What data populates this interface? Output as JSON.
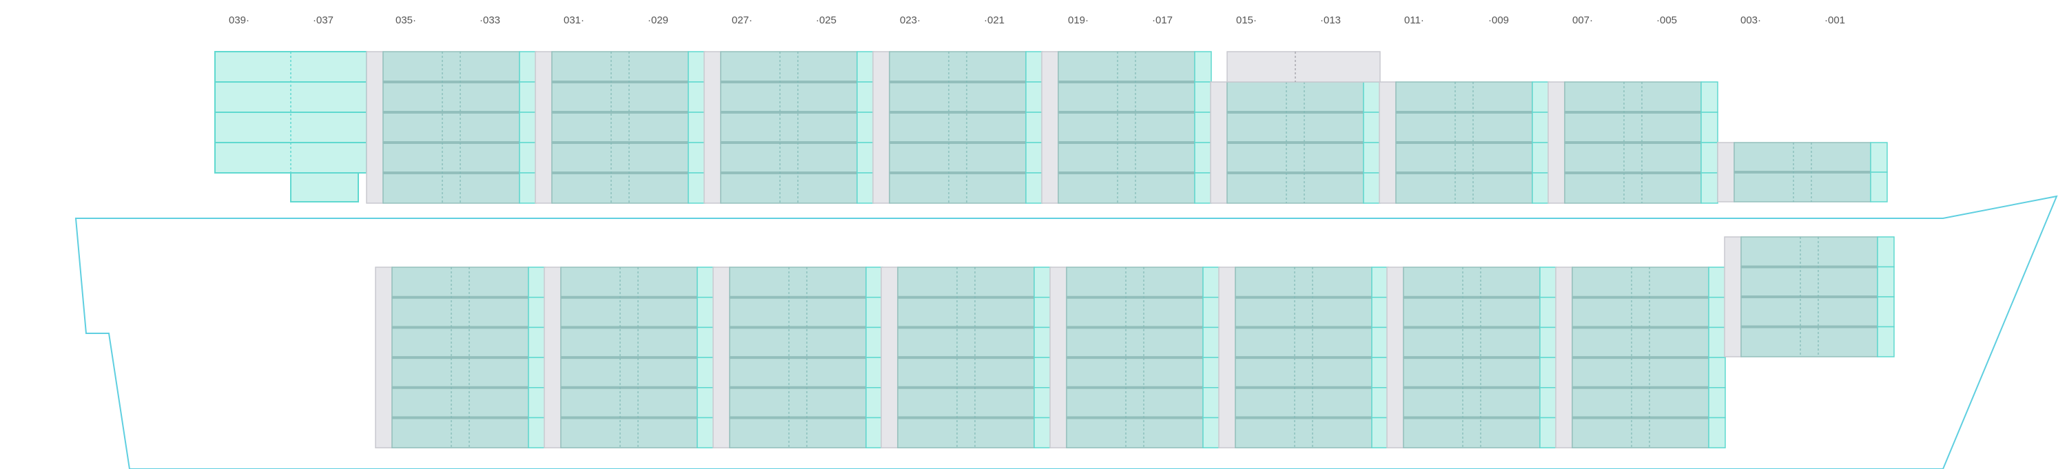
{
  "bays": [
    {
      "id": "039",
      "label": "039·"
    },
    {
      "id": "037",
      "label": "·037"
    },
    {
      "id": "035",
      "label": "035·"
    },
    {
      "id": "033",
      "label": "·033"
    },
    {
      "id": "031",
      "label": "031·"
    },
    {
      "id": "029",
      "label": "·029"
    },
    {
      "id": "027",
      "label": "027·"
    },
    {
      "id": "025",
      "label": "·025"
    },
    {
      "id": "023",
      "label": "023·"
    },
    {
      "id": "021",
      "label": "·021"
    },
    {
      "id": "019",
      "label": "019·"
    },
    {
      "id": "017",
      "label": "·017"
    },
    {
      "id": "015",
      "label": "015·"
    },
    {
      "id": "013",
      "label": "·013"
    },
    {
      "id": "011",
      "label": "011·"
    },
    {
      "id": "009",
      "label": "·009"
    },
    {
      "id": "007",
      "label": "007·"
    },
    {
      "id": "005",
      "label": "·005"
    },
    {
      "id": "003",
      "label": "003·"
    },
    {
      "id": "001",
      "label": "·001"
    }
  ],
  "legend_colors": {
    "hull_line": "#5fcfe0",
    "slot_light": "#c8f3ec",
    "slot_occupied": "#bde0dd",
    "slot_outline": "#5fd8cf",
    "slot_empty": "#e6e6ea",
    "tier_divider": "#93bfbc"
  }
}
